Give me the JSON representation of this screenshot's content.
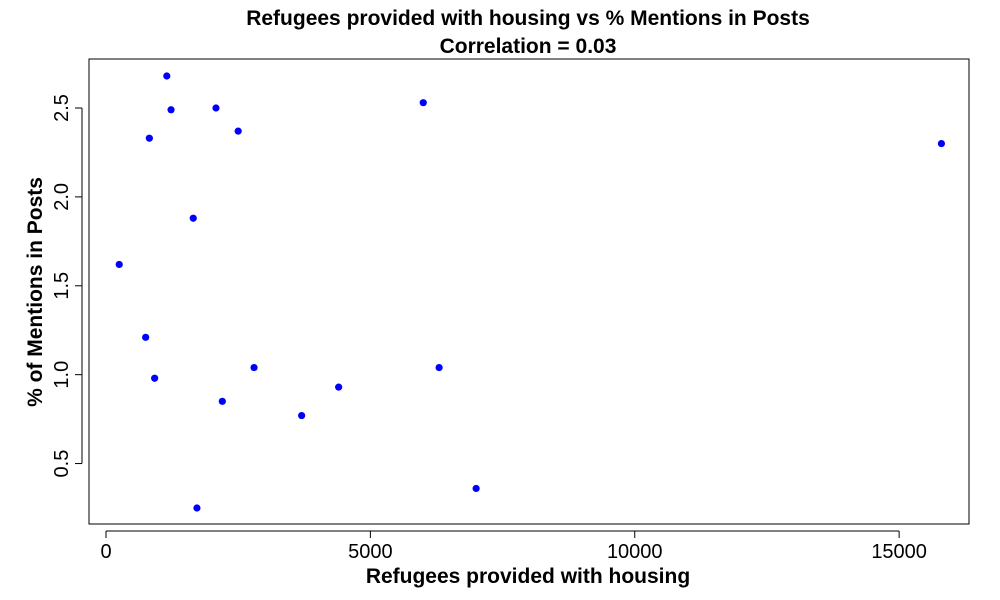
{
  "chart_data": {
    "type": "scatter",
    "title": "Refugees provided with housing vs % Mentions in Posts",
    "subtitle": "Correlation =  0.03",
    "xlabel": "Refugees provided with housing",
    "ylabel": "% of Mentions in Posts",
    "xlim": [
      0,
      16000
    ],
    "ylim": [
      0.25,
      2.68
    ],
    "x_ticks": [
      0,
      5000,
      10000,
      15000
    ],
    "x_tick_labels": [
      "0",
      "5000",
      "10000",
      "15000"
    ],
    "y_ticks": [
      0.5,
      1.0,
      1.5,
      2.0,
      2.5
    ],
    "y_tick_labels": [
      "0.5",
      "1.0",
      "1.5",
      "2.0",
      "2.5"
    ],
    "grid": false,
    "point_color": "#0000ff",
    "points": [
      {
        "x": 250,
        "y": 1.62
      },
      {
        "x": 750,
        "y": 1.21
      },
      {
        "x": 820,
        "y": 2.33
      },
      {
        "x": 920,
        "y": 0.98
      },
      {
        "x": 1150,
        "y": 2.68
      },
      {
        "x": 1230,
        "y": 2.49
      },
      {
        "x": 1650,
        "y": 1.88
      },
      {
        "x": 1720,
        "y": 0.25
      },
      {
        "x": 2080,
        "y": 2.5
      },
      {
        "x": 2200,
        "y": 0.85
      },
      {
        "x": 2500,
        "y": 2.37
      },
      {
        "x": 2800,
        "y": 1.04
      },
      {
        "x": 3700,
        "y": 0.77
      },
      {
        "x": 4400,
        "y": 0.93
      },
      {
        "x": 6000,
        "y": 2.53
      },
      {
        "x": 6300,
        "y": 1.04
      },
      {
        "x": 7000,
        "y": 0.36
      },
      {
        "x": 15800,
        "y": 2.3
      }
    ]
  }
}
